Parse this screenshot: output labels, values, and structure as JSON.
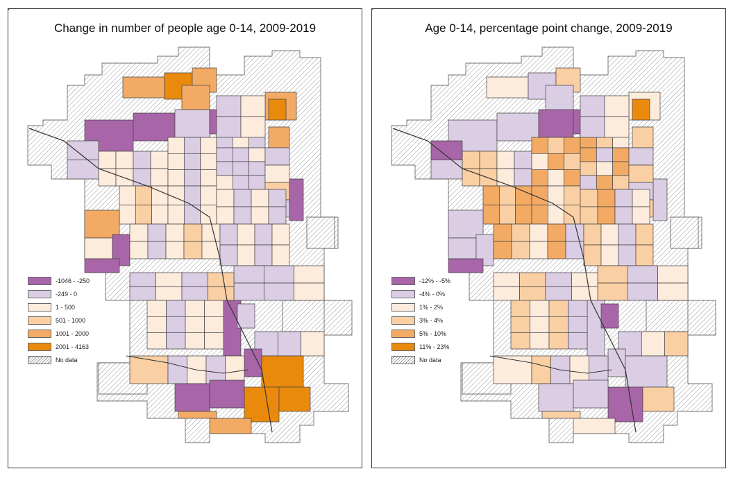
{
  "colors": {
    "purple_dark": "#a865a8",
    "purple_light": "#dbcde4",
    "cream": "#fdebdc",
    "peach": "#f9cfa3",
    "orange_light": "#f3aa64",
    "orange": "#ea8a0c",
    "no_data": "#ffffff",
    "outline": "#444444"
  },
  "maps": [
    {
      "title": "Change in number of people age 0-14, 2009-2019",
      "legend": [
        {
          "label": "-1046 - -250",
          "class": "purple_dark"
        },
        {
          "label": "-249 - 0",
          "class": "purple_light"
        },
        {
          "label": "1 - 500",
          "class": "cream"
        },
        {
          "label": "501 - 1000",
          "class": "peach"
        },
        {
          "label": "1001 - 2000",
          "class": "orange_light"
        },
        {
          "label": "2001 - 4163",
          "class": "orange"
        },
        {
          "label": "No data",
          "class": "no_data"
        }
      ]
    },
    {
      "title": "Age 0-14, percentage point change, 2009-2019",
      "legend": [
        {
          "label": "-12% - -5%",
          "class": "purple_dark"
        },
        {
          "label": "-4% - 0%",
          "class": "purple_light"
        },
        {
          "label": "1% - 2%",
          "class": "cream"
        },
        {
          "label": "3% - 4%",
          "class": "peach"
        },
        {
          "label": "5% - 10%",
          "class": "orange_light"
        },
        {
          "label": "11% - 23%",
          "class": "orange"
        },
        {
          "label": "No data",
          "class": "no_data"
        }
      ]
    }
  ]
}
